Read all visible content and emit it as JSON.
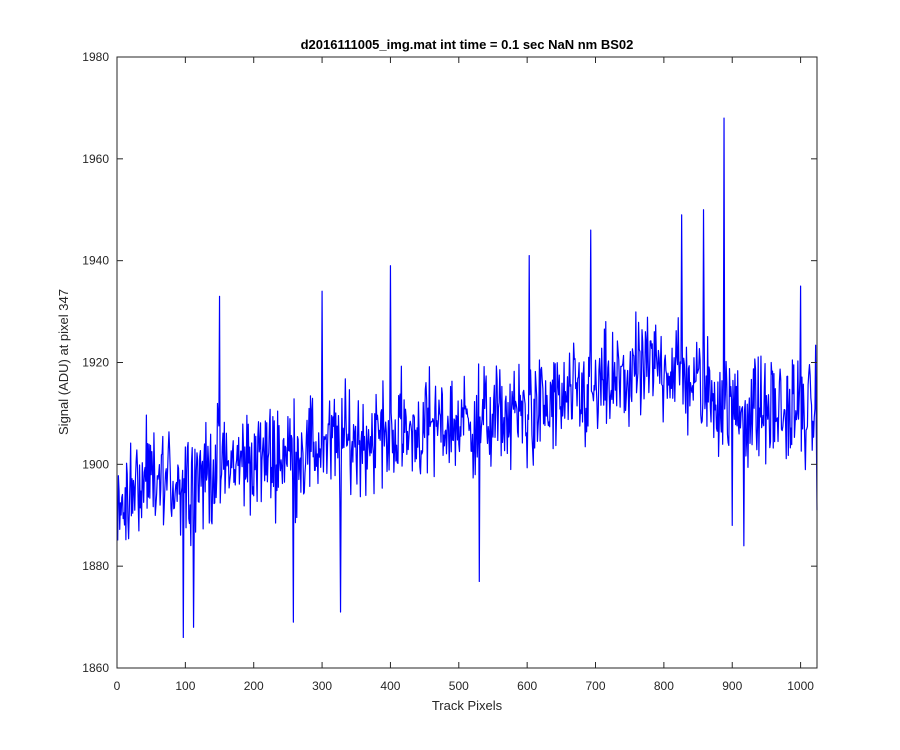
{
  "chart_data": {
    "type": "line",
    "title": "d2016111005_img.mat int time = 0.1 sec  NaN nm BS02",
    "xlabel": "Track Pixels",
    "ylabel": "Signal (ADU) at pixel 347",
    "xlim": [
      0,
      1024
    ],
    "ylim": [
      1860,
      1980
    ],
    "xticks": [
      0,
      100,
      200,
      300,
      400,
      500,
      600,
      700,
      800,
      900,
      1000
    ],
    "yticks": [
      1860,
      1880,
      1900,
      1920,
      1940,
      1960,
      1980
    ],
    "grid": false,
    "line_color": "#0000ff",
    "series": [
      {
        "x_start": 1,
        "x_step": 1,
        "mean_trend": [
          [
            0,
            1894
          ],
          [
            200,
            1901
          ],
          [
            400,
            1906
          ],
          [
            600,
            1910
          ],
          [
            700,
            1914
          ],
          [
            800,
            1920
          ],
          [
            900,
            1911
          ],
          [
            1024,
            1910
          ]
        ],
        "noise_halfwidth": 11,
        "seed": 347,
        "spikes": [
          [
            97,
            1866
          ],
          [
            112,
            1868
          ],
          [
            150,
            1933
          ],
          [
            258,
            1869
          ],
          [
            300,
            1934
          ],
          [
            327,
            1871
          ],
          [
            400,
            1939
          ],
          [
            530,
            1877
          ],
          [
            603,
            1941
          ],
          [
            693,
            1946
          ],
          [
            826,
            1949
          ],
          [
            858,
            1950
          ],
          [
            888,
            1968
          ],
          [
            900,
            1888
          ],
          [
            917,
            1884
          ],
          [
            1000,
            1935
          ],
          [
            1024,
            1891
          ]
        ]
      }
    ]
  }
}
